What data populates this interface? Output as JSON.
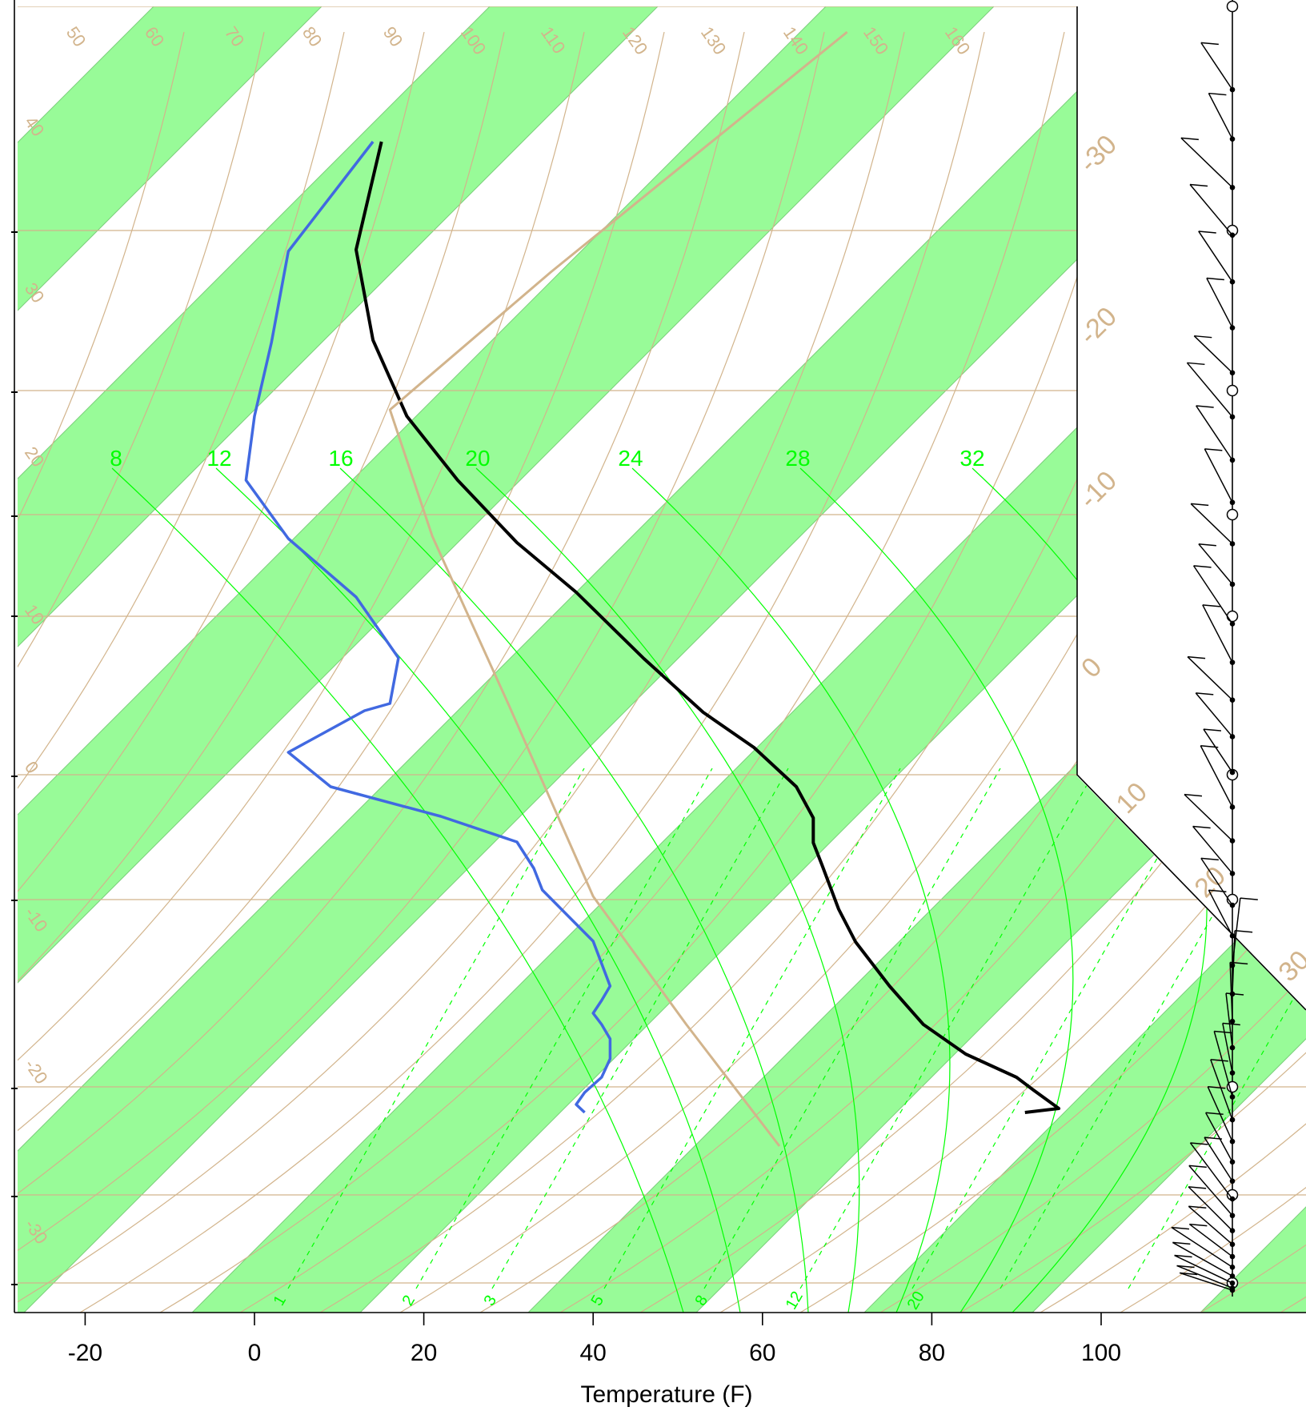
{
  "chart_data": {
    "type": "line",
    "title": "",
    "xlabel": "Temperature (F)",
    "ylabel": "",
    "x_ticks": [
      "-20",
      "0",
      "20",
      "40",
      "60",
      "80",
      "100"
    ],
    "colors": {
      "temperature": "#000000",
      "dewpoint": "#4169e1",
      "parcel": "#d2b48c",
      "isotherm_bands": "#98fb98",
      "dry_adiabats": "#d2b48c",
      "isobars": "#d2b48c",
      "mixing_ratio": "#00ff00"
    },
    "series": [
      {
        "key": "temperature",
        "points": [
          [
            91,
            1390
          ],
          [
            95,
            1385
          ],
          [
            92,
            1362
          ],
          [
            90,
            1346
          ],
          [
            84,
            1317
          ],
          [
            79,
            1280
          ],
          [
            75,
            1232
          ],
          [
            71,
            1177
          ],
          [
            69,
            1136
          ],
          [
            67,
            1080
          ],
          [
            66,
            1053
          ],
          [
            66,
            1022
          ],
          [
            64,
            983
          ],
          [
            59,
            934
          ],
          [
            53,
            890
          ],
          [
            46,
            823
          ],
          [
            38,
            740
          ],
          [
            31,
            678
          ],
          [
            24,
            600
          ],
          [
            18,
            520
          ],
          [
            14,
            425
          ],
          [
            12,
            312
          ],
          [
            15,
            177
          ]
        ]
      },
      {
        "key": "dewpoint",
        "points": [
          [
            39,
            1390
          ],
          [
            38,
            1380
          ],
          [
            39,
            1365
          ],
          [
            41,
            1346
          ],
          [
            42,
            1323
          ],
          [
            42,
            1298
          ],
          [
            41,
            1280
          ],
          [
            40,
            1266
          ],
          [
            41,
            1250
          ],
          [
            42,
            1232
          ],
          [
            40,
            1176
          ],
          [
            34,
            1112
          ],
          [
            33,
            1085
          ],
          [
            31,
            1052
          ],
          [
            22,
            1020
          ],
          [
            9,
            983
          ],
          [
            4,
            940
          ],
          [
            13,
            888
          ],
          [
            16,
            879
          ],
          [
            17,
            822
          ],
          [
            12,
            746
          ],
          [
            4,
            673
          ],
          [
            -1,
            600
          ],
          [
            0,
            520
          ],
          [
            2,
            428
          ],
          [
            4,
            314
          ],
          [
            14,
            177
          ]
        ]
      },
      {
        "key": "parcel",
        "points": [
          [
            62,
            1432
          ],
          [
            51,
            1280
          ],
          [
            40,
            1120
          ],
          [
            30,
            880
          ],
          [
            21,
            670
          ],
          [
            16,
            512
          ],
          [
            35,
            340
          ],
          [
            70,
            40
          ]
        ]
      }
    ],
    "tan_diagonal_labels": [
      "50",
      "60",
      "70",
      "80",
      "90",
      "100",
      "110",
      "120",
      "130",
      "140",
      "150",
      "160"
    ],
    "tan_left_labels": [
      "40",
      "30",
      "20",
      "10",
      "0",
      "-10",
      "-20",
      "-30"
    ],
    "right_isotherm_labels": [
      "-30",
      "-20",
      "-10",
      "0",
      "10",
      "20",
      "30"
    ],
    "mixing_ratio_top_labels": [
      "8",
      "12",
      "16",
      "20",
      "24",
      "28",
      "32"
    ],
    "mixing_ratio_bottom_labels": [
      "1",
      "2",
      "3",
      "5",
      "8",
      "12",
      "20"
    ],
    "wind_barbs": {
      "count": 42
    }
  }
}
